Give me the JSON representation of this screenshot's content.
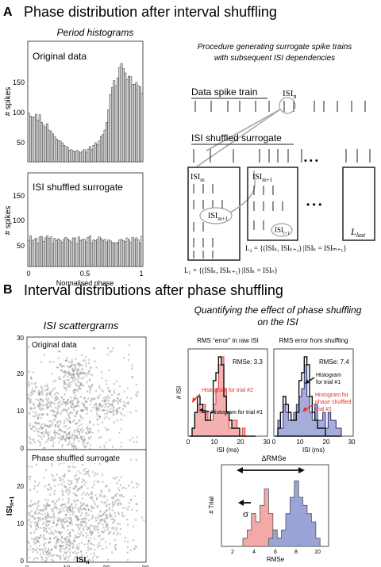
{
  "panelA": {
    "letter": "A",
    "title": "Phase distribution after interval shuffling",
    "hist_title": "Period histograms",
    "hist1_label": "Original data",
    "hist2_label": "ISI shuffled  surrogate",
    "ylabel": "# spikes",
    "xlabel": "Normalised phase",
    "yticks1": [
      "50",
      "100",
      "150"
    ],
    "yticks2": [
      "50",
      "100",
      "150"
    ],
    "xticks": [
      "0",
      "0.5",
      "1"
    ],
    "proc_title_1": "Procedure generating surrogate spike trains",
    "proc_title_2": "with subsequent ISI dependencies",
    "data_train_label": "Data spike train",
    "isi_n": "ISI",
    "isi_n_sub": "n",
    "shuffled_label": "ISI shuffled surrogate",
    "dots": "• • •",
    "box1_label": "ISI",
    "box1_sub": "m",
    "box2_label": "ISI",
    "box2_sub": "m+1",
    "ellipse1_label": "ISI",
    "ellipse1_sub": "m+1",
    "ellipse2_label": "ISI",
    "ellipse2_sub": "l+1",
    "box_last": "L",
    "box_last_sub": "last",
    "L2_formula": "L₂ = {(ISIₖ, ISIₖ₊₁) |ISIₖ = ISIₘ₊₁}",
    "L1_formula": "L₁ = {(ISIₖ, ISIₖ₊₁) |ISIₖ = ISIₙ}"
  },
  "panelB": {
    "letter": "B",
    "title": "Interval distributions after phase shuffling",
    "scatter_title": "ISI scattergrams",
    "scatter1_label": "Original data",
    "scatter2_label": "Phase shuffled surrogate",
    "scatter_xlabel": "ISI",
    "scatter_xlabel_sub": "n",
    "scatter_ylabel": "ISI",
    "scatter_ylabel_sub": "n+1",
    "scatter_ticks": [
      "0",
      "10",
      "20",
      "30"
    ],
    "quant_title_1": "Quantifying the effect of phase shuffling",
    "quant_title_2": "on the ISI",
    "h1_title": "RMS  “error” in raw ISI",
    "h2_title": "RMS error from shuffling",
    "h1_rmse": "RMSe: 3.3",
    "h2_rmse": "RMSe: 7.4",
    "h_ylabel": "# ISI",
    "h_xlabel": "ISI (ms)",
    "h_xticks": [
      "0",
      "10",
      "20",
      "30"
    ],
    "h1_red_label": "Histogram for trial #2",
    "h1_black_label": "Histogram for trial #1",
    "h2_black_label_1": "Histogram",
    "h2_black_label_2": "for trial #1",
    "h2_red_label_1": "Histogram for",
    "h2_red_label_2": "phase shuffled",
    "h2_red_label_3": "trial #1",
    "rmse_ylabel": "# Trial",
    "rmse_xlabel": "RMSe",
    "rmse_xticks": [
      "2",
      "4",
      "6",
      "8",
      "10"
    ],
    "delta_label": "ΔRMSe",
    "sigma_label": "σ"
  },
  "colors": {
    "bar_fill": "#d4d4d4",
    "red": "#e0302a",
    "red_fill": "#f4a8a8",
    "blue_fill": "#9ba4d6",
    "scatter": "#8a8a8a",
    "ellipse": "#a0a0a0"
  },
  "chart_data": [
    {
      "type": "bar",
      "title": "Original data",
      "ylabel": "# spikes",
      "xlabel": "Normalised phase",
      "xlim": [
        0,
        1
      ],
      "ylim": [
        0,
        190
      ],
      "values": [
        77,
        72,
        70,
        71,
        75,
        66,
        74,
        62,
        58,
        55,
        60,
        50,
        48,
        44,
        40,
        36,
        33,
        33,
        30,
        26,
        24,
        23,
        18,
        19,
        17,
        16,
        18,
        16,
        14,
        17,
        19,
        15,
        20,
        24,
        19,
        26,
        30,
        27,
        33,
        40,
        43,
        50,
        62,
        82,
        106,
        117,
        128,
        120,
        132,
        149,
        155,
        147,
        140,
        130,
        135,
        134,
        122,
        122,
        125,
        120,
        118,
        108
      ]
    },
    {
      "type": "bar",
      "title": "ISI shuffled  surrogate",
      "ylabel": "# spikes",
      "xlabel": "Normalised phase",
      "xlim": [
        0,
        1
      ],
      "ylim": [
        0,
        190
      ],
      "values": [
        53,
        62,
        52,
        55,
        57,
        48,
        60,
        61,
        51,
        58,
        62,
        57,
        60,
        46,
        57,
        52,
        56,
        53,
        49,
        55,
        59,
        56,
        53,
        50,
        58,
        58,
        46,
        60,
        53,
        55,
        55,
        50,
        59,
        62,
        48,
        54,
        52,
        55,
        60,
        57,
        53,
        55,
        49,
        54,
        52,
        49,
        48,
        48,
        49,
        54,
        55,
        52,
        51,
        58,
        54,
        49,
        59,
        54,
        58,
        54,
        48,
        61
      ]
    },
    {
      "type": "line",
      "title": "RMS  “error” in raw ISI",
      "xlabel": "ISI (ms)",
      "ylabel": "# ISI",
      "xlim": [
        0,
        30
      ],
      "ylim": [
        0,
        11
      ],
      "x": [
        1,
        2,
        3,
        4,
        5,
        6,
        7,
        8,
        9,
        10,
        11,
        12,
        13,
        14,
        15,
        16,
        17,
        18,
        19,
        20,
        21,
        22,
        23,
        24,
        25
      ],
      "series": [
        {
          "name": "Histogram for trial #1",
          "values": [
            0,
            1,
            3,
            5,
            4,
            3,
            2,
            2,
            3,
            7,
            8,
            10,
            9,
            5,
            3,
            2,
            1,
            1,
            1,
            0,
            0,
            0,
            0,
            0,
            0
          ]
        },
        {
          "name": "Histogram for trial #2",
          "values": [
            0,
            1,
            3,
            4,
            3,
            4,
            3,
            2,
            2,
            4,
            6,
            9,
            10,
            6,
            3,
            1,
            2,
            2,
            1,
            0,
            1,
            0,
            0,
            0,
            0
          ]
        }
      ]
    },
    {
      "type": "line",
      "title": "RMS error from shuffling",
      "xlabel": "ISI (ms)",
      "ylabel": "# ISI",
      "xlim": [
        0,
        30
      ],
      "ylim": [
        0,
        11
      ],
      "x": [
        1,
        2,
        3,
        4,
        5,
        6,
        7,
        8,
        9,
        10,
        11,
        12,
        13,
        14,
        15,
        16,
        17,
        18,
        19,
        20,
        21,
        22,
        23,
        24,
        25
      ],
      "series": [
        {
          "name": "Histogram for trial #1",
          "values": [
            0,
            1,
            3,
            5,
            4,
            3,
            2,
            2,
            3,
            7,
            8,
            10,
            9,
            5,
            3,
            2,
            1,
            1,
            1,
            0,
            0,
            0,
            0,
            0,
            0
          ]
        },
        {
          "name": "Histogram for phase shuffled trial #1",
          "values": [
            0,
            2,
            1,
            4,
            3,
            2,
            2,
            3,
            4,
            5,
            6,
            9,
            5,
            3,
            2,
            4,
            2,
            2,
            3,
            1,
            3,
            2,
            2,
            1,
            1
          ]
        }
      ]
    },
    {
      "type": "area",
      "xlabel": "RMSe",
      "ylabel": "# Trial",
      "xlim": [
        0,
        10
      ],
      "x": [
        2.0,
        2.4,
        2.8,
        3.2,
        3.6,
        4.0,
        4.4,
        4.8,
        5.2,
        5.6,
        6.0,
        6.4,
        6.8,
        7.2,
        7.6,
        8.0,
        8.4,
        8.8
      ],
      "series": [
        {
          "values": [
            1,
            2,
            4,
            3,
            5,
            7,
            4,
            2,
            1,
            1,
            0,
            0,
            0,
            0,
            0,
            0,
            0,
            0
          ]
        },
        {
          "values": [
            0,
            0,
            0,
            0,
            0,
            0,
            1,
            2,
            1,
            2,
            4,
            6,
            8,
            6,
            5,
            4,
            3,
            1
          ]
        }
      ],
      "annotations": [
        "ΔRMSe",
        "σ"
      ]
    }
  ]
}
